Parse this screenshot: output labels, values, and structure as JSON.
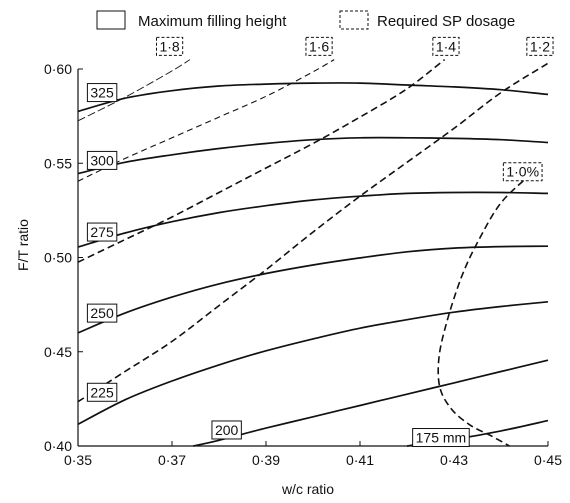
{
  "chart_data": {
    "type": "line",
    "xlabel": "w/c ratio",
    "ylabel": "F/T ratio",
    "xlim": [
      0.35,
      0.45
    ],
    "ylim": [
      0.4,
      0.6
    ],
    "x_ticks": [
      {
        "value": 0.35,
        "label": "0·35"
      },
      {
        "value": 0.37,
        "label": "0·37"
      },
      {
        "value": 0.39,
        "label": "0·39"
      },
      {
        "value": 0.41,
        "label": "0·41"
      },
      {
        "value": 0.43,
        "label": "0·43"
      },
      {
        "value": 0.45,
        "label": "0·45"
      }
    ],
    "y_ticks": [
      {
        "value": 0.4,
        "label": "0·40"
      },
      {
        "value": 0.45,
        "label": "0·45"
      },
      {
        "value": 0.5,
        "label": "0·50"
      },
      {
        "value": 0.55,
        "label": "0·55"
      },
      {
        "value": 0.6,
        "label": "0·60"
      }
    ],
    "legend": {
      "placement": "top",
      "entries": [
        {
          "label": "Maximum filling height",
          "style": "solid"
        },
        {
          "label": "Required SP dosage",
          "style": "dashed"
        }
      ]
    },
    "series": [
      {
        "group": "Maximum filling height",
        "label": "325",
        "label_at": [
          0.352,
          0.5875
        ],
        "points": [
          [
            0.35,
            0.5775
          ],
          [
            0.36,
            0.5845
          ],
          [
            0.37,
            0.5885
          ],
          [
            0.38,
            0.591
          ],
          [
            0.39,
            0.592
          ],
          [
            0.4,
            0.5925
          ],
          [
            0.41,
            0.5925
          ],
          [
            0.42,
            0.5915
          ],
          [
            0.43,
            0.5905
          ],
          [
            0.44,
            0.589
          ],
          [
            0.45,
            0.5865
          ]
        ]
      },
      {
        "group": "Maximum filling height",
        "label": "300",
        "label_at": [
          0.352,
          0.5515
        ],
        "points": [
          [
            0.35,
            0.5445
          ],
          [
            0.36,
            0.5505
          ],
          [
            0.37,
            0.5545
          ],
          [
            0.38,
            0.5578
          ],
          [
            0.39,
            0.5605
          ],
          [
            0.4,
            0.5625
          ],
          [
            0.41,
            0.5635
          ],
          [
            0.42,
            0.5635
          ],
          [
            0.43,
            0.5632
          ],
          [
            0.44,
            0.5625
          ],
          [
            0.45,
            0.561
          ]
        ]
      },
      {
        "group": "Maximum filling height",
        "label": "275",
        "label_at": [
          0.352,
          0.5135
        ],
        "points": [
          [
            0.35,
            0.5055
          ],
          [
            0.36,
            0.513
          ],
          [
            0.37,
            0.519
          ],
          [
            0.38,
            0.5238
          ],
          [
            0.39,
            0.5275
          ],
          [
            0.4,
            0.5305
          ],
          [
            0.41,
            0.5325
          ],
          [
            0.42,
            0.534
          ],
          [
            0.43,
            0.5345
          ],
          [
            0.44,
            0.5345
          ],
          [
            0.45,
            0.534
          ]
        ]
      },
      {
        "group": "Maximum filling height",
        "label": "250",
        "label_at": [
          0.352,
          0.4705
        ],
        "points": [
          [
            0.35,
            0.46
          ],
          [
            0.36,
            0.4705
          ],
          [
            0.37,
            0.479
          ],
          [
            0.38,
            0.486
          ],
          [
            0.39,
            0.4915
          ],
          [
            0.4,
            0.496
          ],
          [
            0.41,
            0.4998
          ],
          [
            0.42,
            0.503
          ],
          [
            0.43,
            0.505
          ],
          [
            0.44,
            0.5058
          ],
          [
            0.45,
            0.506
          ]
        ]
      },
      {
        "group": "Maximum filling height",
        "label": "225",
        "label_at": [
          0.352,
          0.4285
        ],
        "points": [
          [
            0.35,
            0.4115
          ],
          [
            0.36,
            0.4245
          ],
          [
            0.37,
            0.4345
          ],
          [
            0.38,
            0.443
          ],
          [
            0.39,
            0.4505
          ],
          [
            0.4,
            0.4568
          ],
          [
            0.41,
            0.4625
          ],
          [
            0.42,
            0.467
          ],
          [
            0.43,
            0.471
          ],
          [
            0.44,
            0.474
          ],
          [
            0.45,
            0.4765
          ]
        ]
      },
      {
        "group": "Maximum filling height",
        "label": "200",
        "label_at": [
          0.3785,
          0.4085
        ],
        "points": [
          [
            0.3745,
            0.4
          ],
          [
            0.38,
            0.403
          ],
          [
            0.39,
            0.4095
          ],
          [
            0.4,
            0.4155
          ],
          [
            0.41,
            0.4215
          ],
          [
            0.42,
            0.4275
          ],
          [
            0.43,
            0.4335
          ],
          [
            0.44,
            0.4395
          ],
          [
            0.45,
            0.4455
          ]
        ]
      },
      {
        "group": "Maximum filling height",
        "label": "175 mm",
        "label_at": [
          0.4212,
          0.4045
        ],
        "points": [
          [
            0.42,
            0.4
          ],
          [
            0.43,
            0.4035
          ],
          [
            0.44,
            0.408
          ],
          [
            0.45,
            0.4135
          ]
        ]
      },
      {
        "group": "Required SP dosage",
        "label": "1·8",
        "style": "light",
        "label_at": [
          0.3667,
          0.612
        ],
        "points": [
          [
            0.35,
            0.5725
          ],
          [
            0.36,
            0.585
          ],
          [
            0.37,
            0.599
          ],
          [
            0.3738,
            0.605
          ]
        ]
      },
      {
        "group": "Required SP dosage",
        "label": "1·6",
        "style": "thin",
        "label_at": [
          0.3985,
          0.612
        ],
        "points": [
          [
            0.35,
            0.5405
          ],
          [
            0.36,
            0.5525
          ],
          [
            0.37,
            0.5635
          ],
          [
            0.38,
            0.5745
          ],
          [
            0.39,
            0.5855
          ],
          [
            0.4,
            0.5985
          ],
          [
            0.4045,
            0.605
          ]
        ]
      },
      {
        "group": "Required SP dosage",
        "label": "1·4",
        "style": "heavy",
        "label_at": [
          0.4255,
          0.612
        ],
        "points": [
          [
            0.35,
            0.4975
          ],
          [
            0.36,
            0.5095
          ],
          [
            0.37,
            0.5215
          ],
          [
            0.38,
            0.5345
          ],
          [
            0.39,
            0.5475
          ],
          [
            0.4,
            0.5605
          ],
          [
            0.41,
            0.5745
          ],
          [
            0.42,
            0.5895
          ],
          [
            0.428,
            0.605
          ]
        ]
      },
      {
        "group": "Required SP dosage",
        "label": "1·2",
        "style": "heavy",
        "label_at": [
          0.4455,
          0.612
        ],
        "points": [
          [
            0.35,
            0.4235
          ],
          [
            0.36,
            0.4395
          ],
          [
            0.37,
            0.4555
          ],
          [
            0.38,
            0.4745
          ],
          [
            0.39,
            0.4935
          ],
          [
            0.4,
            0.5135
          ],
          [
            0.41,
            0.5325
          ],
          [
            0.42,
            0.5505
          ],
          [
            0.43,
            0.5685
          ],
          [
            0.44,
            0.5875
          ],
          [
            0.45,
            0.603
          ]
        ]
      },
      {
        "group": "Required SP dosage",
        "label": "1·0%",
        "style": "heavy",
        "label_at": [
          0.4405,
          0.5455
        ],
        "points": [
          [
            0.4465,
            0.5445
          ],
          [
            0.44,
            0.529
          ],
          [
            0.435,
            0.508
          ],
          [
            0.4315,
            0.489
          ],
          [
            0.4285,
            0.466
          ],
          [
            0.4268,
            0.447
          ],
          [
            0.427,
            0.431
          ],
          [
            0.4295,
            0.4195
          ],
          [
            0.4335,
            0.411
          ],
          [
            0.4378,
            0.4055
          ],
          [
            0.4418,
            0.4
          ]
        ]
      }
    ]
  }
}
